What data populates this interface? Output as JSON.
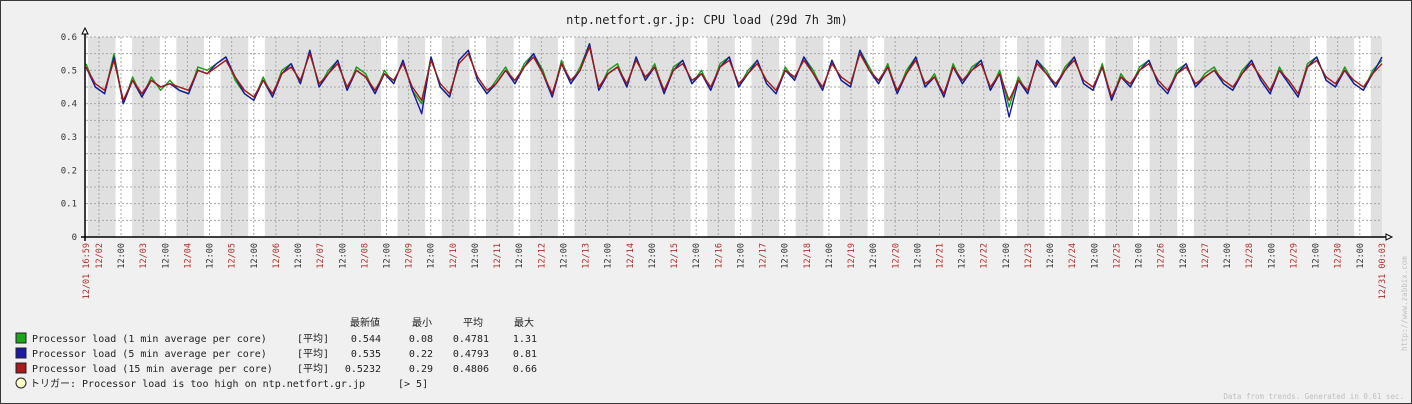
{
  "chart_data": {
    "type": "line",
    "title": "ntp.netfort.gr.jp: CPU load (29d 7h 3m)",
    "xlabel": "",
    "ylabel": "",
    "ylim": [
      0,
      0.6
    ],
    "y_ticks": [
      "0",
      "0.1",
      "0.2",
      "0.3",
      "0.4",
      "0.5",
      "0.6"
    ],
    "grid": true,
    "x_range_hours": [
      0,
      703.07
    ],
    "x_start_label": "12/01 16:59",
    "x_end_label": "12/31 00:03",
    "first_midnight_hour": 7.0167,
    "day_labels": [
      "12/02",
      "12/03",
      "12/04",
      "12/05",
      "12/06",
      "12/07",
      "12/08",
      "12/09",
      "12/10",
      "12/11",
      "12/12",
      "12/13",
      "12/14",
      "12/15",
      "12/16",
      "12/17",
      "12/18",
      "12/19",
      "12/20",
      "12/21",
      "12/22",
      "12/23",
      "12/24",
      "12/25",
      "12/26",
      "12/27",
      "12/28",
      "12/29",
      "12/30"
    ],
    "noon_label": "12:00",
    "weekend_days": [
      "12/06",
      "12/07",
      "12/13",
      "12/14",
      "12/20",
      "12/21",
      "12/27",
      "12/28"
    ],
    "work_hours": [
      9,
      18
    ],
    "series": [
      {
        "name": "Processor load (1 min average per core)",
        "color": "#1a9c1a",
        "values": [
          0.52,
          0.45,
          0.43,
          0.55,
          0.4,
          0.48,
          0.42,
          0.48,
          0.44,
          0.47,
          0.44,
          0.43,
          0.51,
          0.5,
          0.52,
          0.54,
          0.47,
          0.43,
          0.41,
          0.48,
          0.42,
          0.5,
          0.52,
          0.46,
          0.56,
          0.45,
          0.5,
          0.53,
          0.44,
          0.51,
          0.49,
          0.43,
          0.5,
          0.46,
          0.53,
          0.44,
          0.4,
          0.54,
          0.45,
          0.42,
          0.53,
          0.56,
          0.47,
          0.43,
          0.47,
          0.51,
          0.46,
          0.52,
          0.55,
          0.5,
          0.42,
          0.53,
          0.46,
          0.51,
          0.58,
          0.44,
          0.5,
          0.52,
          0.45,
          0.54,
          0.47,
          0.52,
          0.43,
          0.51,
          0.53,
          0.46,
          0.5,
          0.44,
          0.52,
          0.54,
          0.45,
          0.5,
          0.53,
          0.46,
          0.43,
          0.51,
          0.47,
          0.54,
          0.5,
          0.44,
          0.53,
          0.47,
          0.45,
          0.56,
          0.51,
          0.46,
          0.52,
          0.43,
          0.5,
          0.54,
          0.45,
          0.49,
          0.42,
          0.52,
          0.46,
          0.51,
          0.53,
          0.44,
          0.5,
          0.39,
          0.48,
          0.43,
          0.53,
          0.5,
          0.45,
          0.51,
          0.54,
          0.46,
          0.44,
          0.52,
          0.41,
          0.49,
          0.45,
          0.51,
          0.53,
          0.46,
          0.43,
          0.5,
          0.52,
          0.45,
          0.49,
          0.51,
          0.46,
          0.44,
          0.5,
          0.53,
          0.47,
          0.43,
          0.51,
          0.46,
          0.42,
          0.52,
          0.54,
          0.47,
          0.45,
          0.51,
          0.46,
          0.44,
          0.5,
          0.53
        ]
      },
      {
        "name": "Processor load (5 min average per core)",
        "color": "#1a1aa0",
        "values": [
          0.51,
          0.45,
          0.43,
          0.54,
          0.4,
          0.47,
          0.42,
          0.47,
          0.45,
          0.46,
          0.44,
          0.43,
          0.5,
          0.49,
          0.52,
          0.54,
          0.48,
          0.43,
          0.41,
          0.47,
          0.42,
          0.49,
          0.52,
          0.46,
          0.56,
          0.45,
          0.49,
          0.53,
          0.44,
          0.5,
          0.48,
          0.43,
          0.49,
          0.46,
          0.53,
          0.44,
          0.37,
          0.54,
          0.45,
          0.42,
          0.53,
          0.56,
          0.47,
          0.43,
          0.46,
          0.5,
          0.46,
          0.51,
          0.55,
          0.49,
          0.42,
          0.52,
          0.46,
          0.5,
          0.58,
          0.44,
          0.49,
          0.51,
          0.45,
          0.54,
          0.47,
          0.51,
          0.43,
          0.5,
          0.53,
          0.46,
          0.49,
          0.44,
          0.51,
          0.54,
          0.45,
          0.49,
          0.53,
          0.46,
          0.43,
          0.5,
          0.47,
          0.54,
          0.49,
          0.44,
          0.53,
          0.47,
          0.45,
          0.56,
          0.5,
          0.46,
          0.51,
          0.43,
          0.49,
          0.54,
          0.45,
          0.48,
          0.42,
          0.51,
          0.46,
          0.5,
          0.53,
          0.44,
          0.49,
          0.36,
          0.47,
          0.43,
          0.53,
          0.49,
          0.45,
          0.5,
          0.54,
          0.46,
          0.44,
          0.51,
          0.41,
          0.48,
          0.45,
          0.5,
          0.53,
          0.46,
          0.43,
          0.49,
          0.52,
          0.45,
          0.48,
          0.5,
          0.46,
          0.44,
          0.49,
          0.53,
          0.47,
          0.43,
          0.5,
          0.46,
          0.42,
          0.51,
          0.54,
          0.47,
          0.45,
          0.5,
          0.46,
          0.44,
          0.49,
          0.54
        ]
      },
      {
        "name": "Processor load (15 min average per core)",
        "color": "#a01a1a",
        "values": [
          0.51,
          0.46,
          0.44,
          0.53,
          0.41,
          0.47,
          0.43,
          0.47,
          0.45,
          0.46,
          0.45,
          0.44,
          0.5,
          0.49,
          0.51,
          0.53,
          0.48,
          0.44,
          0.42,
          0.47,
          0.43,
          0.49,
          0.51,
          0.47,
          0.55,
          0.46,
          0.49,
          0.52,
          0.45,
          0.5,
          0.48,
          0.44,
          0.49,
          0.47,
          0.52,
          0.45,
          0.41,
          0.53,
          0.46,
          0.43,
          0.52,
          0.55,
          0.48,
          0.44,
          0.46,
          0.5,
          0.47,
          0.51,
          0.54,
          0.49,
          0.43,
          0.52,
          0.47,
          0.5,
          0.57,
          0.45,
          0.49,
          0.51,
          0.46,
          0.53,
          0.48,
          0.51,
          0.44,
          0.5,
          0.52,
          0.47,
          0.49,
          0.45,
          0.51,
          0.53,
          0.46,
          0.49,
          0.52,
          0.47,
          0.44,
          0.5,
          0.48,
          0.53,
          0.49,
          0.45,
          0.52,
          0.48,
          0.46,
          0.55,
          0.5,
          0.47,
          0.51,
          0.44,
          0.49,
          0.53,
          0.46,
          0.48,
          0.43,
          0.51,
          0.47,
          0.5,
          0.52,
          0.45,
          0.49,
          0.41,
          0.47,
          0.44,
          0.52,
          0.49,
          0.46,
          0.5,
          0.53,
          0.47,
          0.45,
          0.51,
          0.42,
          0.48,
          0.46,
          0.5,
          0.52,
          0.47,
          0.44,
          0.49,
          0.51,
          0.46,
          0.48,
          0.5,
          0.47,
          0.45,
          0.49,
          0.52,
          0.48,
          0.44,
          0.5,
          0.47,
          0.43,
          0.51,
          0.53,
          0.48,
          0.46,
          0.5,
          0.47,
          0.45,
          0.49,
          0.52
        ]
      }
    ]
  },
  "legend": {
    "headers": {
      "last": "最新値",
      "min": "最小",
      "avg": "平均",
      "max": "最大"
    },
    "rows": [
      {
        "label": "Processor load (1 min average per core)",
        "func": "[平均]",
        "last": "0.544",
        "min": "0.08",
        "avg": "0.4781",
        "max": "1.31",
        "color": "#1aa51a"
      },
      {
        "label": "Processor load (5 min average per core)",
        "func": "[平均]",
        "last": "0.535",
        "min": "0.22",
        "avg": "0.4793",
        "max": "0.81",
        "color": "#1a1aa5"
      },
      {
        "label": "Processor load (15 min average per core)",
        "func": "[平均]",
        "last": "0.5232",
        "min": "0.29",
        "avg": "0.4806",
        "max": "0.66",
        "color": "#a51a1a"
      }
    ],
    "trigger": {
      "label": "トリガー: Processor load is too high on ntp.netfort.gr.jp",
      "threshold": "[> 5]",
      "color": "#ffffcc"
    }
  },
  "footer": {
    "generated": "Data from trends. Generated in 0.61 sec.",
    "watermark": "http://www.zabbix.com"
  }
}
